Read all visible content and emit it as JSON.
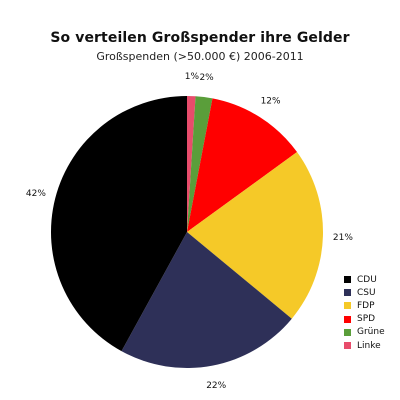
{
  "chart_data": {
    "type": "pie",
    "title": "So verteilen Großspender ihre Gelder",
    "subtitle": "Großspenden (>50.000 €) 2006-2011",
    "slices": [
      {
        "name": "Linke",
        "value": 1,
        "label": "1%",
        "color": "#e84c6b"
      },
      {
        "name": "Grüne",
        "value": 2,
        "label": "2%",
        "color": "#5a9e3a"
      },
      {
        "name": "SPD",
        "value": 12,
        "label": "12%",
        "color": "#ff0000"
      },
      {
        "name": "FDP",
        "value": 21,
        "label": "21%",
        "color": "#f5c928"
      },
      {
        "name": "CSU",
        "value": 22,
        "label": "22%",
        "color": "#2e3058"
      },
      {
        "name": "CDU",
        "value": 42,
        "label": "42%",
        "color": "#000000"
      }
    ],
    "legend": [
      "CDU",
      "CSU",
      "FDP",
      "SPD",
      "Grüne",
      "Linke"
    ],
    "legend_position": "right"
  }
}
